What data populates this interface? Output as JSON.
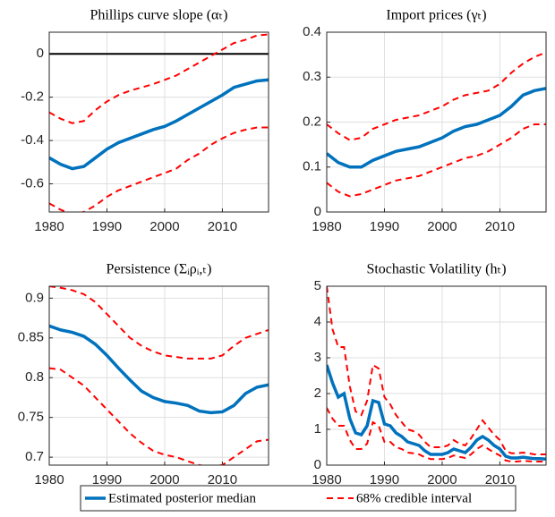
{
  "chart_data": [
    {
      "type": "line",
      "title": "Phillips curve slope (αₜ)",
      "x": [
        1980,
        1982,
        1984,
        1986,
        1988,
        1990,
        1992,
        1994,
        1996,
        1998,
        2000,
        2002,
        2004,
        2006,
        2008,
        2010,
        2012,
        2014,
        2016,
        2018
      ],
      "series": [
        {
          "name": "Estimated posterior median",
          "color": "#0072bd",
          "values": [
            -0.48,
            -0.51,
            -0.53,
            -0.52,
            -0.48,
            -0.44,
            -0.41,
            -0.39,
            -0.37,
            -0.35,
            -0.335,
            -0.31,
            -0.28,
            -0.25,
            -0.22,
            -0.19,
            -0.155,
            -0.14,
            -0.125,
            -0.12
          ]
        },
        {
          "name": "68% credible interval",
          "color": "#ff0000",
          "dash": true,
          "values": [
            -0.27,
            -0.3,
            -0.32,
            -0.31,
            -0.26,
            -0.22,
            -0.19,
            -0.17,
            -0.155,
            -0.14,
            -0.12,
            -0.1,
            -0.07,
            -0.04,
            -0.01,
            0.02,
            0.05,
            0.065,
            0.085,
            0.09
          ]
        },
        {
          "color": "#ff0000",
          "dash": true,
          "values": [
            -0.69,
            -0.72,
            -0.74,
            -0.73,
            -0.7,
            -0.66,
            -0.63,
            -0.61,
            -0.59,
            -0.57,
            -0.55,
            -0.53,
            -0.49,
            -0.46,
            -0.42,
            -0.39,
            -0.365,
            -0.35,
            -0.34,
            -0.34
          ]
        }
      ],
      "reference_line": 0,
      "xlim": [
        1980,
        2018
      ],
      "xticks": [
        1980,
        1990,
        2000,
        2010
      ],
      "ylim": [
        -0.73,
        0.1
      ],
      "yticks": [
        -0.6,
        -0.4,
        -0.2,
        0
      ],
      "grid": true
    },
    {
      "type": "line",
      "title": "Import prices (γₜ)",
      "x": [
        1980,
        1982,
        1984,
        1986,
        1988,
        1990,
        1992,
        1994,
        1996,
        1998,
        2000,
        2002,
        2004,
        2006,
        2008,
        2010,
        2012,
        2014,
        2016,
        2018
      ],
      "series": [
        {
          "color": "#0072bd",
          "values": [
            0.13,
            0.11,
            0.1,
            0.1,
            0.115,
            0.125,
            0.135,
            0.14,
            0.145,
            0.155,
            0.165,
            0.18,
            0.19,
            0.195,
            0.205,
            0.215,
            0.235,
            0.26,
            0.27,
            0.275
          ]
        },
        {
          "color": "#ff0000",
          "dash": true,
          "values": [
            0.195,
            0.175,
            0.16,
            0.165,
            0.185,
            0.195,
            0.205,
            0.21,
            0.215,
            0.225,
            0.235,
            0.25,
            0.26,
            0.265,
            0.27,
            0.285,
            0.31,
            0.33,
            0.345,
            0.355
          ]
        },
        {
          "color": "#ff0000",
          "dash": true,
          "values": [
            0.065,
            0.045,
            0.035,
            0.04,
            0.05,
            0.06,
            0.07,
            0.075,
            0.08,
            0.09,
            0.1,
            0.11,
            0.12,
            0.125,
            0.135,
            0.15,
            0.165,
            0.185,
            0.195,
            0.195
          ]
        }
      ],
      "xlim": [
        1980,
        2018
      ],
      "xticks": [
        1980,
        1990,
        2000,
        2010
      ],
      "ylim": [
        0,
        0.4
      ],
      "yticks": [
        0,
        0.1,
        0.2,
        0.3,
        0.4
      ],
      "grid": true
    },
    {
      "type": "line",
      "title": "Persistence (Σᵢρᵢ,ₜ)",
      "x": [
        1980,
        1982,
        1984,
        1986,
        1988,
        1990,
        1992,
        1994,
        1996,
        1998,
        2000,
        2002,
        2004,
        2006,
        2008,
        2010,
        2012,
        2014,
        2016,
        2018
      ],
      "series": [
        {
          "color": "#0072bd",
          "values": [
            0.865,
            0.86,
            0.857,
            0.852,
            0.842,
            0.828,
            0.812,
            0.797,
            0.783,
            0.775,
            0.77,
            0.768,
            0.765,
            0.758,
            0.756,
            0.757,
            0.765,
            0.78,
            0.788,
            0.791
          ]
        },
        {
          "color": "#ff0000",
          "dash": true,
          "values": [
            0.915,
            0.913,
            0.91,
            0.905,
            0.895,
            0.88,
            0.865,
            0.85,
            0.84,
            0.833,
            0.828,
            0.826,
            0.824,
            0.824,
            0.824,
            0.828,
            0.84,
            0.85,
            0.855,
            0.86
          ]
        },
        {
          "color": "#ff0000",
          "dash": true,
          "values": [
            0.812,
            0.81,
            0.8,
            0.79,
            0.775,
            0.76,
            0.745,
            0.73,
            0.718,
            0.708,
            0.703,
            0.7,
            0.695,
            0.69,
            0.688,
            0.69,
            0.7,
            0.71,
            0.72,
            0.722
          ]
        }
      ],
      "xlim": [
        1980,
        2018
      ],
      "xticks": [
        1980,
        1990,
        2000,
        2010
      ],
      "ylim": [
        0.69,
        0.915
      ],
      "yticks": [
        0.7,
        0.75,
        0.8,
        0.85,
        0.9
      ],
      "grid": true
    },
    {
      "type": "line",
      "title": "Stochastic Volatility (hₜ)",
      "x": [
        1980,
        1981,
        1982,
        1983,
        1984,
        1985,
        1986,
        1987,
        1988,
        1989,
        1990,
        1991,
        1992,
        1993,
        1994,
        1995,
        1996,
        1997,
        1998,
        1999,
        2000,
        2001,
        2002,
        2003,
        2004,
        2005,
        2006,
        2007,
        2008,
        2009,
        2010,
        2011,
        2012,
        2013,
        2014,
        2015,
        2016,
        2017,
        2018
      ],
      "series": [
        {
          "color": "#0072bd",
          "values": [
            2.8,
            2.3,
            1.9,
            2.0,
            1.3,
            0.9,
            0.85,
            1.1,
            1.8,
            1.75,
            1.15,
            1.1,
            0.9,
            0.8,
            0.65,
            0.6,
            0.55,
            0.4,
            0.3,
            0.3,
            0.3,
            0.35,
            0.45,
            0.4,
            0.35,
            0.5,
            0.7,
            0.8,
            0.7,
            0.55,
            0.45,
            0.25,
            0.2,
            0.2,
            0.22,
            0.2,
            0.18,
            0.18,
            0.17
          ]
        },
        {
          "color": "#ff0000",
          "dash": true,
          "values": [
            5.0,
            3.8,
            3.3,
            3.3,
            2.2,
            1.5,
            1.4,
            1.8,
            2.8,
            2.7,
            1.9,
            1.7,
            1.4,
            1.2,
            1.0,
            0.95,
            0.85,
            0.65,
            0.5,
            0.5,
            0.5,
            0.55,
            0.7,
            0.6,
            0.55,
            0.75,
            1.0,
            1.25,
            1.05,
            0.85,
            0.7,
            0.4,
            0.33,
            0.33,
            0.35,
            0.33,
            0.3,
            0.3,
            0.3
          ]
        },
        {
          "color": "#ff0000",
          "dash": true,
          "values": [
            1.6,
            1.3,
            1.1,
            1.1,
            0.7,
            0.45,
            0.45,
            0.6,
            1.2,
            1.1,
            0.65,
            0.65,
            0.5,
            0.45,
            0.35,
            0.33,
            0.3,
            0.22,
            0.17,
            0.17,
            0.17,
            0.2,
            0.27,
            0.23,
            0.2,
            0.3,
            0.45,
            0.55,
            0.45,
            0.35,
            0.27,
            0.13,
            0.1,
            0.1,
            0.12,
            0.11,
            0.1,
            0.1,
            0.09
          ]
        }
      ],
      "xlim": [
        1980,
        2018
      ],
      "xticks": [
        1980,
        1990,
        2000,
        2010
      ],
      "ylim": [
        0,
        5
      ],
      "yticks": [
        0,
        1,
        2,
        3,
        4,
        5
      ],
      "grid": true
    }
  ]
}
